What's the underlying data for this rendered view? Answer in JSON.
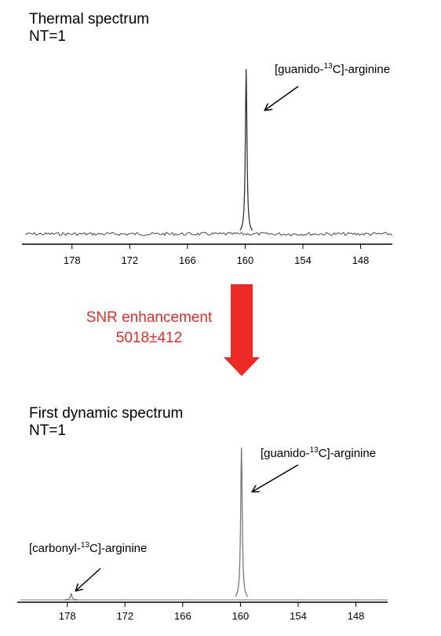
{
  "chart_data": [
    {
      "type": "spectrum",
      "title": "Thermal spectrum",
      "subtitle": "NT=1",
      "xlim": [
        183.2,
        144.7
      ],
      "xticks": [
        178,
        172,
        166,
        160,
        154,
        148
      ],
      "noise": true,
      "color": "#333333",
      "peaks": {
        "x": [
          159.9
        ],
        "intensity": [
          100
        ]
      },
      "annotations": [
        {
          "prefix": "[guanido-",
          "sup": "13",
          "suffix": "C]-arginine",
          "x": 159.9
        }
      ]
    },
    {
      "type": "spectrum",
      "title": "First dynamic spectrum",
      "subtitle": "NT=1",
      "xlim": [
        183.2,
        144.7
      ],
      "xticks": [
        178,
        172,
        166,
        160,
        154,
        148
      ],
      "noise": false,
      "color": "#777777",
      "peaks": {
        "x": [
          177.6,
          159.9
        ],
        "intensity": [
          4,
          100
        ]
      },
      "annotations": [
        {
          "prefix": "[carbonyl-",
          "sup": "13",
          "suffix": "C]-arginine",
          "x": 177.6
        },
        {
          "prefix": "[guanido-",
          "sup": "13",
          "suffix": "C]-arginine",
          "x": 159.9
        }
      ]
    }
  ],
  "enhancement": {
    "label": "SNR enhancement",
    "value": "5018±412",
    "color": "#ee2a24"
  }
}
